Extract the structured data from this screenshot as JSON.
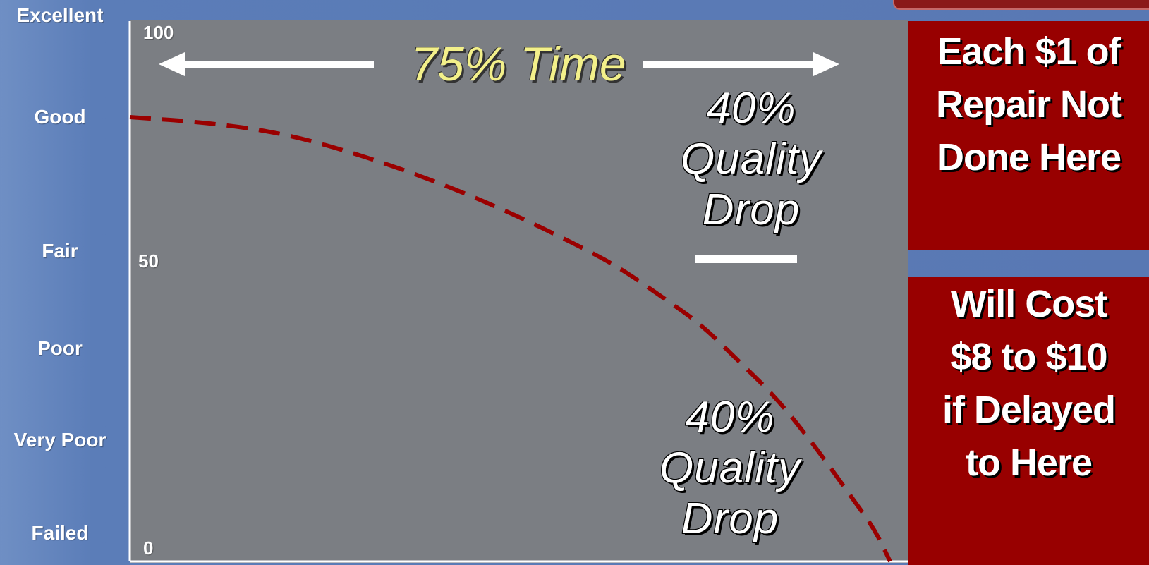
{
  "ratings": [
    "Excellent",
    "Good",
    "Fair",
    "Poor",
    "Very Poor",
    "Failed"
  ],
  "y_ticks": {
    "top": "100",
    "mid": "50",
    "bottom": "0"
  },
  "time_label": "75% Time",
  "quality_drop_top": [
    "40%",
    "Quality",
    "Drop"
  ],
  "quality_drop_bottom": [
    "40%",
    "Quality",
    "Drop"
  ],
  "repair_box": [
    "Each $1 of",
    "Repair Not",
    "Done Here"
  ],
  "cost_box": [
    "Will Cost",
    "$8 to $10",
    "if Delayed",
    "to Here"
  ],
  "colors": {
    "background": "#5978b3",
    "plot": "#7b7e83",
    "curve": "#9a0000",
    "box": "#980000",
    "time_label": "#f3f08a"
  },
  "chart_data": {
    "type": "line",
    "ylim": [
      0,
      100
    ],
    "xlim": [
      0,
      100
    ],
    "y_ticks": [
      0,
      50,
      100
    ],
    "series": [
      {
        "style": "dashed",
        "x": [
          0,
          10,
          20,
          30,
          40,
          50,
          60,
          65,
          70,
          75,
          80,
          85,
          90,
          95,
          98,
          100
        ],
        "y": [
          84,
          83,
          81,
          77,
          72,
          66,
          59,
          55,
          50,
          45,
          38,
          31,
          22,
          12,
          6,
          0
        ]
      }
    ],
    "annotations": [
      "75% Time",
      "40% Quality Drop",
      "40% Quality Drop"
    ]
  }
}
